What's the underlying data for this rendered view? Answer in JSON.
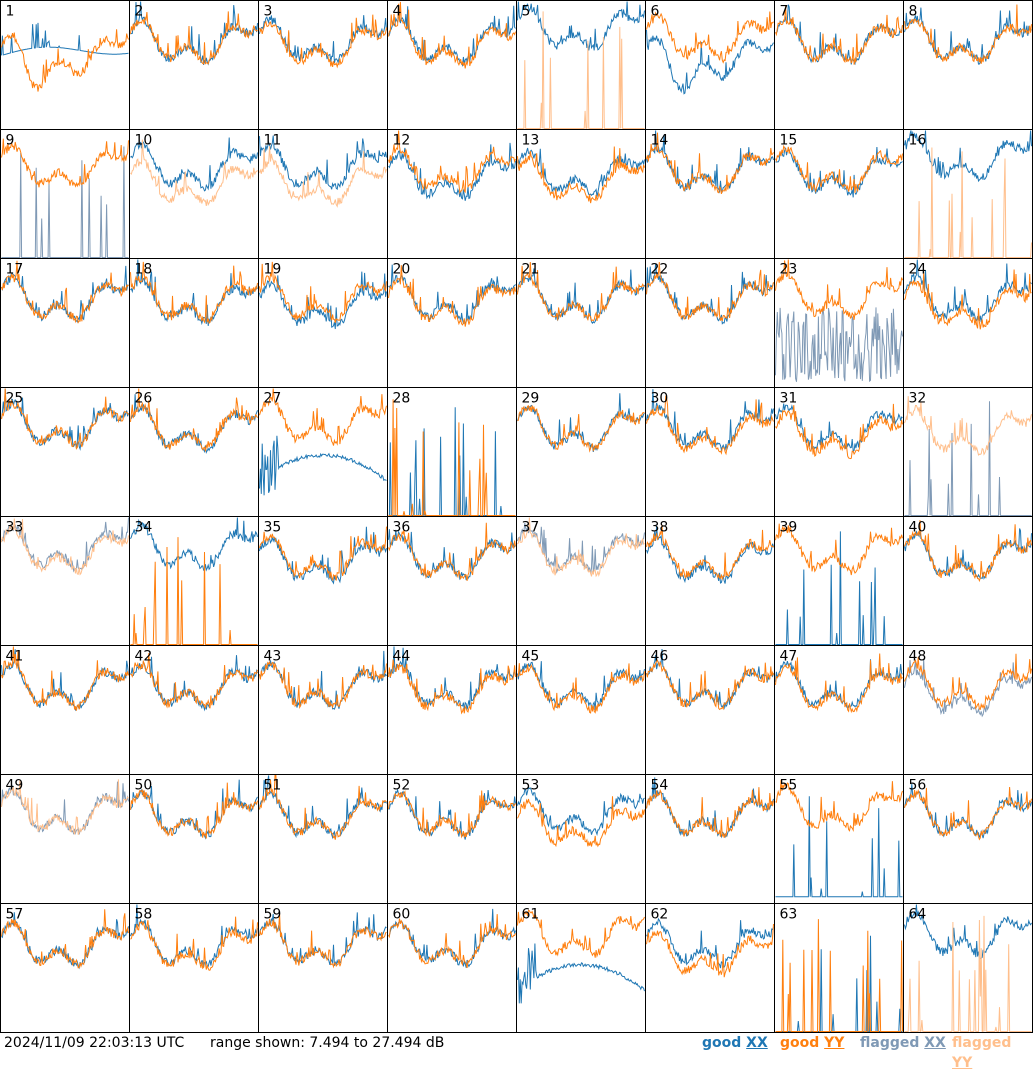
{
  "timestamp": "2024/11/09 22:03:13 UTC",
  "range_label": "range shown: 7.494 to 27.494 dB",
  "legend": [
    {
      "prefix": "good",
      "pol": "XX",
      "color": "#1f77b4"
    },
    {
      "prefix": "good",
      "pol": "YY",
      "color": "#ff7f0e"
    },
    {
      "prefix": "flagged",
      "pol": "XX",
      "color": "#7f99b5"
    },
    {
      "prefix": "flagged",
      "pol": "YY",
      "color": "#ffbf8c"
    }
  ],
  "chart_data": {
    "type": "line",
    "grid": {
      "rows": 8,
      "cols": 8
    },
    "ylim": [
      7.494,
      27.494
    ],
    "y_units": "dB",
    "series_styles": {
      "good_XX": "#1f77b4",
      "good_YY": "#ff7f0e",
      "flagged_XX": "#7f99b5",
      "flagged_YY": "#ffbf8c"
    },
    "panels": [
      {
        "id": "1",
        "xx": {
          "flag": false,
          "kind": "flat",
          "level": 19.0
        },
        "yy": {
          "flag": false,
          "kind": "dip",
          "level": 18.5
        }
      },
      {
        "id": "2",
        "xx": {
          "flag": false,
          "kind": "normal",
          "level": 20.5
        },
        "yy": {
          "flag": false,
          "kind": "normal",
          "level": 20.5
        }
      },
      {
        "id": "3",
        "xx": {
          "flag": false,
          "kind": "normal",
          "level": 20.5
        },
        "yy": {
          "flag": false,
          "kind": "normal",
          "level": 20.0
        }
      },
      {
        "id": "4",
        "xx": {
          "flag": false,
          "kind": "normal",
          "level": 20.5
        },
        "yy": {
          "flag": false,
          "kind": "normal",
          "level": 20.0
        }
      },
      {
        "id": "5",
        "xx": {
          "flag": false,
          "kind": "high",
          "level": 22.5
        },
        "yy": {
          "flag": true,
          "kind": "spikes",
          "level": 8.0
        }
      },
      {
        "id": "6",
        "xx": {
          "flag": false,
          "kind": "dip",
          "level": 18.0
        },
        "yy": {
          "flag": false,
          "kind": "normal",
          "level": 21.0
        }
      },
      {
        "id": "7",
        "xx": {
          "flag": false,
          "kind": "normal",
          "level": 20.5
        },
        "yy": {
          "flag": false,
          "kind": "normal",
          "level": 20.5
        }
      },
      {
        "id": "8",
        "xx": {
          "flag": false,
          "kind": "normal",
          "level": 20.5
        },
        "yy": {
          "flag": false,
          "kind": "normal",
          "level": 20.5
        }
      },
      {
        "id": "9",
        "xx": {
          "flag": true,
          "kind": "spikes",
          "level": 8.0
        },
        "yy": {
          "flag": false,
          "kind": "normal",
          "level": 21.0
        }
      },
      {
        "id": "10",
        "xx": {
          "flag": false,
          "kind": "normal",
          "level": 21.0
        },
        "yy": {
          "flag": true,
          "kind": "normal",
          "level": 18.5
        }
      },
      {
        "id": "11",
        "xx": {
          "flag": false,
          "kind": "normal",
          "level": 21.0
        },
        "yy": {
          "flag": true,
          "kind": "normal",
          "level": 18.5
        }
      },
      {
        "id": "12",
        "xx": {
          "flag": false,
          "kind": "normal",
          "level": 19.5
        },
        "yy": {
          "flag": false,
          "kind": "normal",
          "level": 20.5
        }
      },
      {
        "id": "13",
        "xx": {
          "flag": false,
          "kind": "normal",
          "level": 20.0
        },
        "yy": {
          "flag": false,
          "kind": "normal",
          "level": 19.0
        }
      },
      {
        "id": "14",
        "xx": {
          "flag": false,
          "kind": "normal",
          "level": 20.5
        },
        "yy": {
          "flag": false,
          "kind": "normal",
          "level": 20.5
        }
      },
      {
        "id": "15",
        "xx": {
          "flag": false,
          "kind": "normal",
          "level": 20.0
        },
        "yy": {
          "flag": false,
          "kind": "normal",
          "level": 20.5
        }
      },
      {
        "id": "16",
        "xx": {
          "flag": false,
          "kind": "high",
          "level": 22.5
        },
        "yy": {
          "flag": true,
          "kind": "spikes",
          "level": 8.0
        }
      },
      {
        "id": "17",
        "xx": {
          "flag": false,
          "kind": "normal",
          "level": 20.5
        },
        "yy": {
          "flag": false,
          "kind": "normal",
          "level": 20.5
        }
      },
      {
        "id": "18",
        "xx": {
          "flag": false,
          "kind": "normal",
          "level": 20.0
        },
        "yy": {
          "flag": false,
          "kind": "normal",
          "level": 20.5
        }
      },
      {
        "id": "19",
        "xx": {
          "flag": false,
          "kind": "normal",
          "level": 19.5
        },
        "yy": {
          "flag": false,
          "kind": "normal",
          "level": 20.5
        }
      },
      {
        "id": "20",
        "xx": {
          "flag": false,
          "kind": "normal",
          "level": 20.5
        },
        "yy": {
          "flag": false,
          "kind": "normal",
          "level": 20.0
        }
      },
      {
        "id": "21",
        "xx": {
          "flag": false,
          "kind": "normal",
          "level": 20.5
        },
        "yy": {
          "flag": false,
          "kind": "normal",
          "level": 20.5
        }
      },
      {
        "id": "22",
        "xx": {
          "flag": false,
          "kind": "normal",
          "level": 20.5
        },
        "yy": {
          "flag": false,
          "kind": "normal",
          "level": 20.5
        }
      },
      {
        "id": "23",
        "xx": {
          "flag": true,
          "kind": "noisy",
          "level": 14.0
        },
        "yy": {
          "flag": false,
          "kind": "normal",
          "level": 21.0
        }
      },
      {
        "id": "24",
        "xx": {
          "flag": false,
          "kind": "normal",
          "level": 20.5
        },
        "yy": {
          "flag": false,
          "kind": "normal",
          "level": 19.5
        }
      },
      {
        "id": "25",
        "xx": {
          "flag": false,
          "kind": "normal",
          "level": 21.0
        },
        "yy": {
          "flag": false,
          "kind": "normal",
          "level": 21.0
        }
      },
      {
        "id": "26",
        "xx": {
          "flag": false,
          "kind": "normal",
          "level": 20.5
        },
        "yy": {
          "flag": false,
          "kind": "normal",
          "level": 20.5
        }
      },
      {
        "id": "27",
        "xx": {
          "flag": false,
          "kind": "arc",
          "level": 17.0
        },
        "yy": {
          "flag": false,
          "kind": "normal",
          "level": 21.5
        }
      },
      {
        "id": "28",
        "xx": {
          "flag": false,
          "kind": "spikes",
          "level": 8.0
        },
        "yy": {
          "flag": false,
          "kind": "spikes",
          "level": 8.0
        }
      },
      {
        "id": "29",
        "xx": {
          "flag": false,
          "kind": "normal",
          "level": 20.5
        },
        "yy": {
          "flag": false,
          "kind": "normal",
          "level": 20.5
        }
      },
      {
        "id": "30",
        "xx": {
          "flag": false,
          "kind": "normal",
          "level": 20.5
        },
        "yy": {
          "flag": false,
          "kind": "normal",
          "level": 20.0
        }
      },
      {
        "id": "31",
        "xx": {
          "flag": false,
          "kind": "normal",
          "level": 20.5
        },
        "yy": {
          "flag": false,
          "kind": "normal",
          "level": 19.5
        }
      },
      {
        "id": "32",
        "xx": {
          "flag": true,
          "kind": "spikes",
          "level": 8.0
        },
        "yy": {
          "flag": true,
          "kind": "normal",
          "level": 20.0
        }
      },
      {
        "id": "33",
        "xx": {
          "flag": true,
          "kind": "normal",
          "level": 22.0
        },
        "yy": {
          "flag": true,
          "kind": "normal",
          "level": 21.5
        }
      },
      {
        "id": "34",
        "xx": {
          "flag": false,
          "kind": "high",
          "level": 22.0
        },
        "yy": {
          "flag": false,
          "kind": "spikes",
          "level": 8.0
        }
      },
      {
        "id": "35",
        "xx": {
          "flag": false,
          "kind": "normal",
          "level": 20.0
        },
        "yy": {
          "flag": false,
          "kind": "normal",
          "level": 20.5
        }
      },
      {
        "id": "36",
        "xx": {
          "flag": false,
          "kind": "normal",
          "level": 20.5
        },
        "yy": {
          "flag": false,
          "kind": "normal",
          "level": 20.5
        }
      },
      {
        "id": "37",
        "xx": {
          "flag": true,
          "kind": "normal",
          "level": 21.5
        },
        "yy": {
          "flag": true,
          "kind": "normal",
          "level": 21.0
        }
      },
      {
        "id": "38",
        "xx": {
          "flag": false,
          "kind": "normal",
          "level": 20.0
        },
        "yy": {
          "flag": false,
          "kind": "normal",
          "level": 20.5
        }
      },
      {
        "id": "39",
        "xx": {
          "flag": false,
          "kind": "spikes",
          "level": 8.0
        },
        "yy": {
          "flag": false,
          "kind": "normal",
          "level": 21.5
        }
      },
      {
        "id": "40",
        "xx": {
          "flag": false,
          "kind": "normal",
          "level": 20.5
        },
        "yy": {
          "flag": false,
          "kind": "normal",
          "level": 20.5
        }
      },
      {
        "id": "41",
        "xx": {
          "flag": false,
          "kind": "normal",
          "level": 20.5
        },
        "yy": {
          "flag": false,
          "kind": "normal",
          "level": 20.5
        }
      },
      {
        "id": "42",
        "xx": {
          "flag": false,
          "kind": "normal",
          "level": 20.5
        },
        "yy": {
          "flag": false,
          "kind": "normal",
          "level": 20.5
        }
      },
      {
        "id": "43",
        "xx": {
          "flag": false,
          "kind": "normal",
          "level": 20.5
        },
        "yy": {
          "flag": false,
          "kind": "normal",
          "level": 20.5
        }
      },
      {
        "id": "44",
        "xx": {
          "flag": false,
          "kind": "normal",
          "level": 20.5
        },
        "yy": {
          "flag": false,
          "kind": "normal",
          "level": 20.0
        }
      },
      {
        "id": "45",
        "xx": {
          "flag": false,
          "kind": "normal",
          "level": 20.5
        },
        "yy": {
          "flag": false,
          "kind": "normal",
          "level": 20.0
        }
      },
      {
        "id": "46",
        "xx": {
          "flag": false,
          "kind": "normal",
          "level": 20.5
        },
        "yy": {
          "flag": false,
          "kind": "normal",
          "level": 20.5
        }
      },
      {
        "id": "47",
        "xx": {
          "flag": false,
          "kind": "normal",
          "level": 20.5
        },
        "yy": {
          "flag": false,
          "kind": "normal",
          "level": 20.0
        }
      },
      {
        "id": "48",
        "xx": {
          "flag": true,
          "kind": "normal",
          "level": 19.5
        },
        "yy": {
          "flag": false,
          "kind": "normal",
          "level": 20.5
        }
      },
      {
        "id": "49",
        "xx": {
          "flag": true,
          "kind": "normal",
          "level": 21.0
        },
        "yy": {
          "flag": true,
          "kind": "normal",
          "level": 21.0
        }
      },
      {
        "id": "50",
        "xx": {
          "flag": false,
          "kind": "normal",
          "level": 20.5
        },
        "yy": {
          "flag": false,
          "kind": "normal",
          "level": 20.5
        }
      },
      {
        "id": "51",
        "xx": {
          "flag": false,
          "kind": "normal",
          "level": 20.5
        },
        "yy": {
          "flag": false,
          "kind": "normal",
          "level": 20.5
        }
      },
      {
        "id": "52",
        "xx": {
          "flag": false,
          "kind": "normal",
          "level": 20.5
        },
        "yy": {
          "flag": false,
          "kind": "normal",
          "level": 20.5
        }
      },
      {
        "id": "53",
        "xx": {
          "flag": false,
          "kind": "normal",
          "level": 21.0
        },
        "yy": {
          "flag": false,
          "kind": "normal",
          "level": 19.0
        }
      },
      {
        "id": "54",
        "xx": {
          "flag": false,
          "kind": "normal",
          "level": 20.5
        },
        "yy": {
          "flag": false,
          "kind": "normal",
          "level": 20.5
        }
      },
      {
        "id": "55",
        "xx": {
          "flag": false,
          "kind": "spikes",
          "level": 9.0
        },
        "yy": {
          "flag": false,
          "kind": "normal",
          "level": 21.5
        }
      },
      {
        "id": "56",
        "xx": {
          "flag": false,
          "kind": "normal",
          "level": 20.5
        },
        "yy": {
          "flag": false,
          "kind": "normal",
          "level": 20.5
        }
      },
      {
        "id": "57",
        "xx": {
          "flag": false,
          "kind": "normal",
          "level": 20.5
        },
        "yy": {
          "flag": false,
          "kind": "normal",
          "level": 20.5
        }
      },
      {
        "id": "58",
        "xx": {
          "flag": false,
          "kind": "normal",
          "level": 20.5
        },
        "yy": {
          "flag": false,
          "kind": "normal",
          "level": 20.0
        }
      },
      {
        "id": "59",
        "xx": {
          "flag": false,
          "kind": "normal",
          "level": 20.5
        },
        "yy": {
          "flag": false,
          "kind": "normal",
          "level": 20.5
        }
      },
      {
        "id": "60",
        "xx": {
          "flag": false,
          "kind": "normal",
          "level": 20.5
        },
        "yy": {
          "flag": false,
          "kind": "normal",
          "level": 20.5
        }
      },
      {
        "id": "61",
        "xx": {
          "flag": false,
          "kind": "arc",
          "level": 18.0
        },
        "yy": {
          "flag": false,
          "kind": "normal",
          "level": 22.0
        }
      },
      {
        "id": "62",
        "xx": {
          "flag": false,
          "kind": "normal",
          "level": 20.5
        },
        "yy": {
          "flag": false,
          "kind": "normal",
          "level": 19.0
        }
      },
      {
        "id": "63",
        "xx": {
          "flag": false,
          "kind": "spikes",
          "level": 8.0
        },
        "yy": {
          "flag": false,
          "kind": "spikes",
          "level": 8.0
        }
      },
      {
        "id": "64",
        "xx": {
          "flag": false,
          "kind": "high",
          "level": 22.0
        },
        "yy": {
          "flag": true,
          "kind": "spikes",
          "level": 8.0
        }
      }
    ]
  }
}
